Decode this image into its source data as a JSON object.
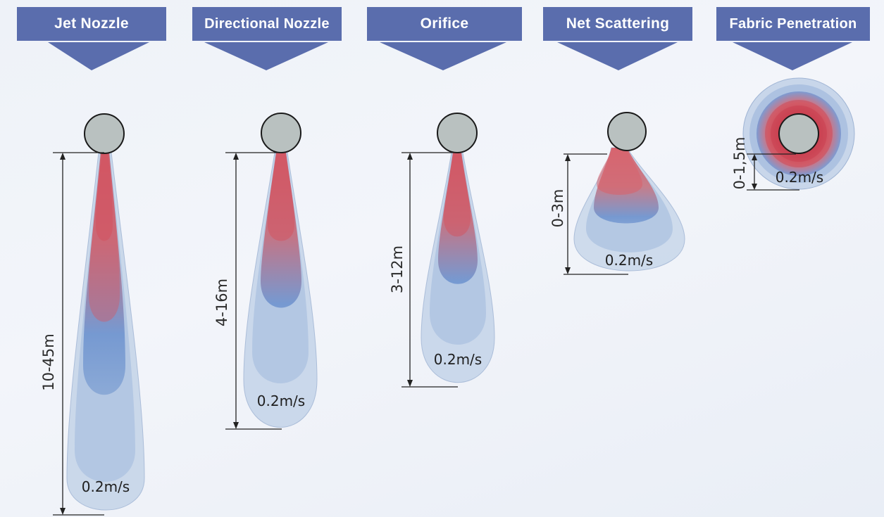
{
  "headers": [
    {
      "label": "Jet Nozzle"
    },
    {
      "label": "Directional Nozzle"
    },
    {
      "label": "Orifice"
    },
    {
      "label": "Net Scattering"
    },
    {
      "label": "Fabric Penetration"
    }
  ],
  "diagrams": [
    {
      "range_label": "10-45m",
      "velocity_label": "0.2m/s"
    },
    {
      "range_label": "4-16m",
      "velocity_label": "0.2m/s"
    },
    {
      "range_label": "3-12m",
      "velocity_label": "0.2m/s"
    },
    {
      "range_label": "0-3m",
      "velocity_label": "0.2m/s"
    },
    {
      "range_label": "0-1,5m",
      "velocity_label": "0.2m/s"
    }
  ],
  "colors": {
    "header_bg": "#5a6dad",
    "header_text": "#ffffff",
    "core_red": "#d4525e",
    "plume_blue": "#5a8ccc",
    "plume_outer": "#c4d4e8",
    "duct": "#b9c1c0"
  }
}
